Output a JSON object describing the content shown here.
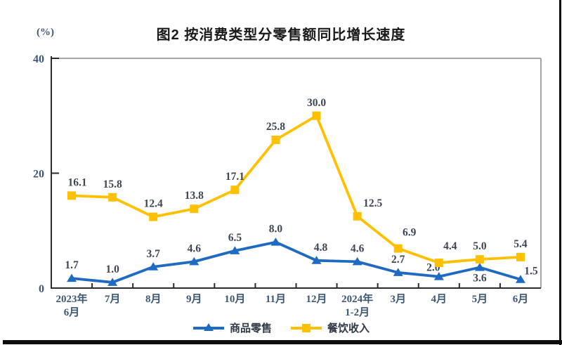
{
  "title": "图2 按消费类型分零售额同比增长速度",
  "unit_label": "(%)",
  "colors": {
    "goods_retail": "#1f6bc4",
    "catering_income": "#ffc000",
    "axis_black": "#2b2b2b",
    "border_gray": "#a6a6a6",
    "axis_label": "#3c5876",
    "data_label": "#3d4656"
  },
  "legend": {
    "items": [
      {
        "label": "商品零售",
        "marker": "triangle",
        "color": "#1f6bc4"
      },
      {
        "label": "餐饮收入",
        "marker": "square",
        "color": "#ffc000"
      }
    ]
  },
  "chart_data": {
    "type": "line",
    "title": "图2 按消费类型分零售额同比增长速度",
    "xlabel": "",
    "ylabel": "(%)",
    "ylim": [
      0,
      40
    ],
    "yticks": [
      0,
      20,
      40
    ],
    "grid": false,
    "legend_position": "bottom",
    "categories": [
      [
        "2023年",
        "6月"
      ],
      [
        "7月"
      ],
      [
        "8月"
      ],
      [
        "9月"
      ],
      [
        "10月"
      ],
      [
        "11月"
      ],
      [
        "12月"
      ],
      [
        "2024年",
        "1-2月"
      ],
      [
        "3月"
      ],
      [
        "4月"
      ],
      [
        "5月"
      ],
      [
        "6月"
      ]
    ],
    "series": [
      {
        "name": "商品零售",
        "marker": "triangle",
        "color": "#1f6bc4",
        "values": [
          1.7,
          1.0,
          3.7,
          4.6,
          6.5,
          8.0,
          4.8,
          4.6,
          2.7,
          2.0,
          3.6,
          1.5
        ],
        "label_offsets": {
          "6": [
            6,
            0
          ],
          "9": [
            -8,
            6
          ],
          "10": [
            0,
            34
          ],
          "11": [
            15,
            7
          ]
        }
      },
      {
        "name": "餐饮收入",
        "marker": "square",
        "color": "#ffc000",
        "values": [
          16.1,
          15.8,
          12.4,
          13.8,
          17.1,
          25.8,
          30.0,
          12.5,
          6.9,
          4.4,
          5.0,
          5.4
        ],
        "label_offsets": {
          "0": [
            8,
            0
          ],
          "7": [
            22,
            0
          ],
          "8": [
            16,
            -4
          ],
          "9": [
            16,
            -5
          ]
        }
      }
    ]
  }
}
